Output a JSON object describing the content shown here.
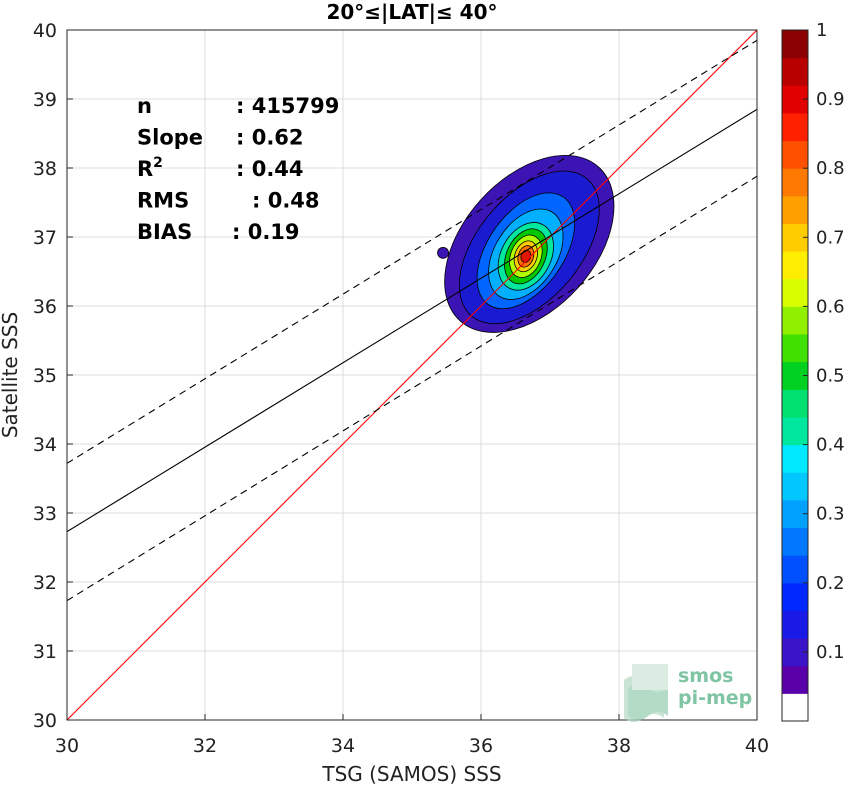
{
  "chart_data": {
    "type": "contour-scatter",
    "title": "20°≤|LAT|≤ 40°",
    "xlabel": "TSG (SAMOS) SSS",
    "ylabel": "Satellite SSS",
    "xlim": [
      30,
      40
    ],
    "ylim": [
      30,
      40
    ],
    "xticks": [
      "30",
      "32",
      "34",
      "36",
      "38",
      "40"
    ],
    "yticks": [
      "30",
      "31",
      "32",
      "33",
      "34",
      "35",
      "36",
      "37",
      "38",
      "39",
      "40"
    ],
    "grid": true,
    "stats": [
      {
        "label": "n",
        "value": ": 415799"
      },
      {
        "label": "Slope",
        "value": ": 0.62"
      },
      {
        "label": "R",
        "sup": "2",
        "value": ": 0.44"
      },
      {
        "label": "RMS",
        "value": ": 0.48"
      },
      {
        "label": "BIAS",
        "value": ": 0.19"
      }
    ],
    "lines": [
      {
        "name": "one-to-one",
        "color": "#ff0000",
        "style": "solid",
        "x": [
          30,
          40
        ],
        "y": [
          30,
          40
        ]
      },
      {
        "name": "fit",
        "color": "#000000",
        "style": "solid",
        "x": [
          30,
          40
        ],
        "y": [
          32.73,
          38.85
        ]
      },
      {
        "name": "fit-upper",
        "color": "#000000",
        "style": "dashed",
        "x": [
          30,
          40
        ],
        "y": [
          33.72,
          39.85
        ]
      },
      {
        "name": "fit-lower",
        "color": "#000000",
        "style": "dashed",
        "x": [
          30,
          40
        ],
        "y": [
          31.73,
          37.88
        ]
      }
    ],
    "density_contours": [
      {
        "level": 0.05,
        "color": "#3c14b4",
        "center": [
          36.7,
          36.9
        ],
        "rx": 1.5,
        "ry": 0.95,
        "rotate": 48
      },
      {
        "level": 0.1,
        "color": "#1a1ad0",
        "center": [
          36.7,
          36.85
        ],
        "rx": 1.3,
        "ry": 0.75,
        "rotate": 50
      },
      {
        "level": 0.2,
        "color": "#0066ff",
        "center": [
          36.65,
          36.8
        ],
        "rx": 0.95,
        "ry": 0.55,
        "rotate": 55
      },
      {
        "level": 0.3,
        "color": "#00b0ff",
        "center": [
          36.65,
          36.75
        ],
        "rx": 0.72,
        "ry": 0.45,
        "rotate": 58
      },
      {
        "level": 0.4,
        "color": "#00e8a0",
        "center": [
          36.65,
          36.72
        ],
        "rx": 0.52,
        "ry": 0.36,
        "rotate": 62
      },
      {
        "level": 0.5,
        "color": "#00c800",
        "center": [
          36.65,
          36.72
        ],
        "rx": 0.42,
        "ry": 0.28,
        "rotate": 65
      },
      {
        "level": 0.6,
        "color": "#b0ff00",
        "center": [
          36.65,
          36.72
        ],
        "rx": 0.32,
        "ry": 0.22,
        "rotate": 68
      },
      {
        "level": 0.7,
        "color": "#ffcc00",
        "center": [
          36.65,
          36.72
        ],
        "rx": 0.23,
        "ry": 0.16,
        "rotate": 70
      },
      {
        "level": 0.8,
        "color": "#ff7000",
        "center": [
          36.65,
          36.72
        ],
        "rx": 0.16,
        "ry": 0.11,
        "rotate": 72
      },
      {
        "level": 0.9,
        "color": "#dd1800",
        "center": [
          36.65,
          36.72
        ],
        "rx": 0.09,
        "ry": 0.07,
        "rotate": 72
      }
    ],
    "outlier_blob": {
      "center": [
        35.45,
        36.77
      ],
      "rx": 0.08,
      "ry": 0.08,
      "color": "#3c14b4"
    },
    "colorbar": {
      "ticks": [
        "0.1",
        "0.2",
        "0.3",
        "0.4",
        "0.5",
        "0.6",
        "0.7",
        "0.8",
        "0.9",
        "1"
      ],
      "levels": [
        0.1,
        0.2,
        0.3,
        0.4,
        0.5,
        0.6,
        0.7,
        0.8,
        0.9,
        1.0
      ],
      "colors": [
        "#ffffff",
        "#5a00a8",
        "#3a14c8",
        "#1a1ae6",
        "#0028ff",
        "#0050ff",
        "#0078ff",
        "#00a0ff",
        "#00c8ff",
        "#00eaff",
        "#00e8a0",
        "#00e070",
        "#00d020",
        "#40e000",
        "#90f000",
        "#d8ff00",
        "#ffee00",
        "#ffcc00",
        "#ffa000",
        "#ff7800",
        "#ff5000",
        "#ff2000",
        "#e00000",
        "#b80000",
        "#8b0000"
      ]
    }
  },
  "logo": {
    "line1": "smos",
    "line2": "pi-mep"
  }
}
